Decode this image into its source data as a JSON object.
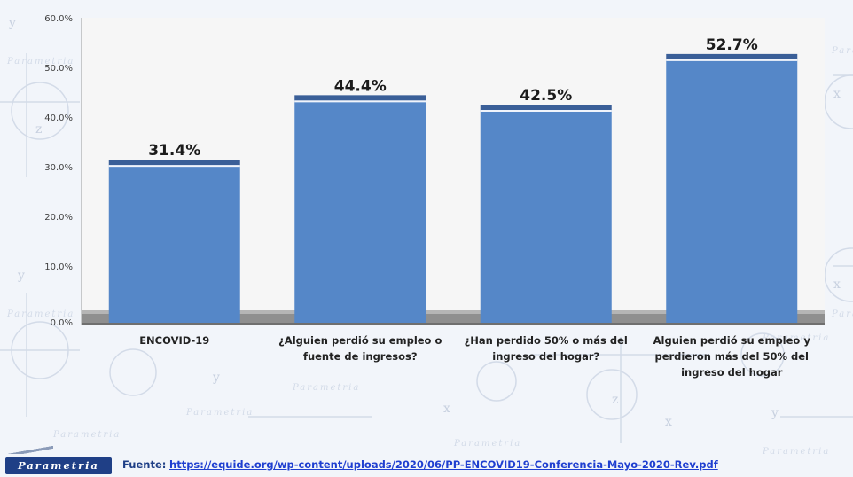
{
  "chart_data": {
    "type": "bar",
    "categories": [
      "ENCOVID-19",
      "¿Alguien perdió su empleo o fuente de ingresos?",
      "¿Han perdido 50% o más del ingreso del hogar?",
      "Alguien perdió su empleo y perdieron más del 50% del ingreso del hogar"
    ],
    "category_lines": [
      [
        "ENCOVID-19"
      ],
      [
        "¿Alguien perdió su empleo o",
        "fuente de ingresos?"
      ],
      [
        "¿Han perdido 50% o más del",
        "ingreso del hogar?"
      ],
      [
        "Alguien perdió su empleo y",
        "perdieron más del 50% del",
        "ingreso del hogar"
      ]
    ],
    "values": [
      31.4,
      44.4,
      42.5,
      52.7
    ],
    "data_labels": [
      "31.4%",
      "44.4%",
      "42.5%",
      "52.7%"
    ],
    "yticks": [
      "0.0%",
      "10.0%",
      "20.0%",
      "30.0%",
      "40.0%",
      "50.0%",
      "60.0%"
    ],
    "ylim": [
      0,
      60
    ],
    "title": "",
    "xlabel": "",
    "ylabel": "",
    "grid": false,
    "legend": "none",
    "bar_color": "#5587c8",
    "bar_cap_color": "#3a5f98"
  },
  "watermark": {
    "text": "Parametria"
  },
  "footer": {
    "logo_text": "Parametria",
    "source_label": "Fuente:",
    "source_url": "https://equide.org/wp-content/uploads/2020/06/PP-ENCOVID19-Conferencia-Mayo-2020-Rev.pdf"
  }
}
